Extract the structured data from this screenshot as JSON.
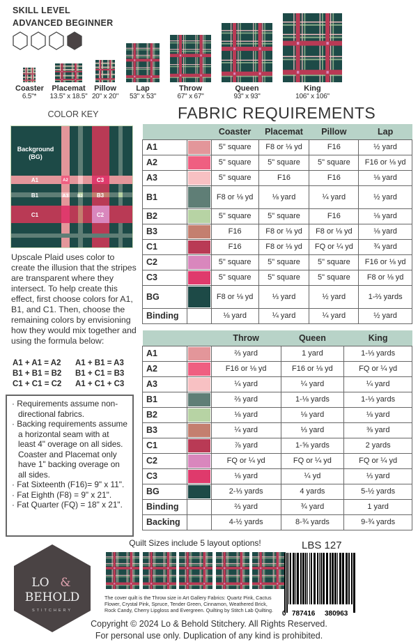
{
  "skill": {
    "title": "SKILL LEVEL",
    "level": "ADVANCED BEGINNER",
    "filled_fraction": 0.625
  },
  "colors": {
    "A1": "#e3969a",
    "A2": "#ef5f81",
    "A3": "#f8c1c3",
    "B1": "#5f7e76",
    "B2": "#b7d3a4",
    "B3": "#c47f6f",
    "C1": "#b93a55",
    "C2": "#d987bd",
    "C3": "#df3a6c",
    "BG": "#1d4a47",
    "header": "#b8d3c8",
    "logo": "#4a4344"
  },
  "sizes": [
    {
      "name": "Coaster",
      "dim": "6.5\"*"
    },
    {
      "name": "Placemat",
      "dim": "13.5\" x 18.5\""
    },
    {
      "name": "Pillow",
      "dim": "20\" x 20\""
    },
    {
      "name": "Lap",
      "dim": "53\" x 53\""
    },
    {
      "name": "Throw",
      "dim": "67\" x 67\""
    },
    {
      "name": "Queen",
      "dim": "93\" x 93\""
    },
    {
      "name": "King",
      "dim": "106\" x 106\""
    }
  ],
  "color_key": {
    "title": "COLOR KEY",
    "labels": {
      "bg": "Background",
      "bg2": "(BG)",
      "A1": "A1",
      "A2": "A2",
      "A3": "A3",
      "B1": "B1",
      "B2": "B2",
      "B3": "B3",
      "C1": "C1",
      "C2": "C2",
      "C3": "C3"
    }
  },
  "fabric_title": "FABRIC REQUIREMENTS",
  "table1": {
    "headers": [
      "Coaster",
      "Placemat",
      "Pillow",
      "Lap"
    ],
    "rows": [
      {
        "label": "A1",
        "swatch": "A1",
        "cells": [
          "5\" square",
          "F8 or ⅛ yd",
          "F16",
          "½ yard"
        ]
      },
      {
        "label": "A2",
        "swatch": "A2",
        "cells": [
          "5\" square",
          "5\" square",
          "5\" square",
          "F16 or ⅛ yd"
        ]
      },
      {
        "label": "A3",
        "swatch": "A3",
        "cells": [
          "5\" square",
          "F16",
          "F16",
          "⅛ yard"
        ]
      },
      {
        "label": "B1",
        "swatch": "B1",
        "cells": [
          "F8 or ⅛ yd",
          "⅛ yard",
          "¼ yard",
          "½ yard"
        ]
      },
      {
        "label": "B2",
        "swatch": "B2",
        "cells": [
          "5\" square",
          "5\" square",
          "F16",
          "⅛ yard"
        ]
      },
      {
        "label": "B3",
        "swatch": "B3",
        "cells": [
          "F16",
          "F8 or ⅛ yd",
          "F8 or ⅛ yd",
          "⅛ yard"
        ]
      },
      {
        "label": "C1",
        "swatch": "C1",
        "cells": [
          "F16",
          "F8 or ⅛ yd",
          "FQ or ¼ yd",
          "¾ yard"
        ]
      },
      {
        "label": "C2",
        "swatch": "C2",
        "cells": [
          "5\" square",
          "5\" square",
          "5\" square",
          "F16 or ⅛ yd"
        ]
      },
      {
        "label": "C3",
        "swatch": "C3",
        "cells": [
          "5\" square",
          "5\" square",
          "5\" square",
          "F8 or ⅛ yd"
        ]
      },
      {
        "label": "BG",
        "swatch": "BG",
        "cells": [
          "F8 or ⅛ yd",
          "⅓ yard",
          "½ yard",
          "1-⅔ yards"
        ]
      },
      {
        "label": "Binding",
        "swatch": "",
        "cells": [
          "⅛ yard",
          "¼ yard",
          "¼ yard",
          "½ yard"
        ]
      }
    ]
  },
  "table2": {
    "headers": [
      "Throw",
      "Queen",
      "King"
    ],
    "rows": [
      {
        "label": "A1",
        "swatch": "A1",
        "cells": [
          "⅔ yard",
          "1 yard",
          "1-⅓ yards"
        ]
      },
      {
        "label": "A2",
        "swatch": "A2",
        "cells": [
          "F16 or ⅛ yd",
          "F16 or ⅛ yd",
          "FQ or ¼ yd"
        ]
      },
      {
        "label": "A3",
        "swatch": "A3",
        "cells": [
          "¼ yard",
          "¼ yard",
          "¼ yard"
        ]
      },
      {
        "label": "B1",
        "swatch": "B1",
        "cells": [
          "⅔ yard",
          "1-⅛ yards",
          "1-⅓ yards"
        ]
      },
      {
        "label": "B2",
        "swatch": "B2",
        "cells": [
          "⅛ yard",
          "⅛ yard",
          "⅛ yard"
        ]
      },
      {
        "label": "B3",
        "swatch": "B3",
        "cells": [
          "¼ yard",
          "⅓ yard",
          "⅜ yard"
        ]
      },
      {
        "label": "C1",
        "swatch": "C1",
        "cells": [
          "⅞ yard",
          "1-⅝ yards",
          "2 yards"
        ]
      },
      {
        "label": "C2",
        "swatch": "C2",
        "cells": [
          "FQ or ¼ yd",
          "FQ or ¼ yd",
          "FQ or ¼ yd"
        ]
      },
      {
        "label": "C3",
        "swatch": "C3",
        "cells": [
          "⅛ yard",
          "¼ yd",
          "⅓ yard"
        ]
      },
      {
        "label": "BG",
        "swatch": "BG",
        "cells": [
          "2-⅓ yards",
          "4 yards",
          "5-½ yards"
        ]
      },
      {
        "label": "Binding",
        "swatch": "",
        "cells": [
          "⅔ yard",
          "¾ yard",
          "1 yard"
        ]
      },
      {
        "label": "Backing",
        "swatch": "",
        "cells": [
          "4-½ yards",
          "8-¾ yards",
          "9-¾ yards"
        ]
      }
    ]
  },
  "intro": "Upscale Plaid uses color to create the illusion that the stripes are transparent where they intersect. To help create this effect, first choose colors for A1, B1, and C1. Then, choose the remaining colors by envisioning how they would mix together and using the formula below:",
  "formula": [
    "A1 + A1 = A2",
    "A1 + B1 = A3",
    "B1 + B1 = B2",
    "B1 + C1 = B3",
    "C1 + C1 = C2",
    "A1 + C1 + C3"
  ],
  "notes": [
    "Requirements assume non-directional fabrics.",
    "Backing requirements assume a horizontal seam with at least 4\" overage on all sides. Coaster and Placemat only have 1\" backing overage on all sides.",
    "Fat Sixteenth (F16)= 9\" x 11\".",
    "Fat Eighth (F8) = 9\" x 21\".",
    "Fat Quarter (FQ) = 18\" x 21\"."
  ],
  "logo": {
    "line1": "LO",
    "amp": "&",
    "line2": "BEHOLD",
    "line3": "STITCHERY"
  },
  "layouts_title": "Quilt Sizes include 5 layout options!",
  "caption": "The cover quilt is the Throw size in Art Gallery Fabrics: Quartz Pink, Cactus Flower, Crystal Pink, Spruce, Tender Green, Cinnamon, Weathered Brick, Rock Candy, Cherry Lipgloss and Evergreen. Quilting by Stitch Lab Quilting.",
  "sku": "LBS 127",
  "barcode": {
    "left": "0",
    "mid": "787416",
    "right": "380963"
  },
  "copyright": "Copyright © 2024 Lo & Behold Stitchery. All Rights Reserved.",
  "usage": "For personal use only. Duplication of any kind is prohibited."
}
